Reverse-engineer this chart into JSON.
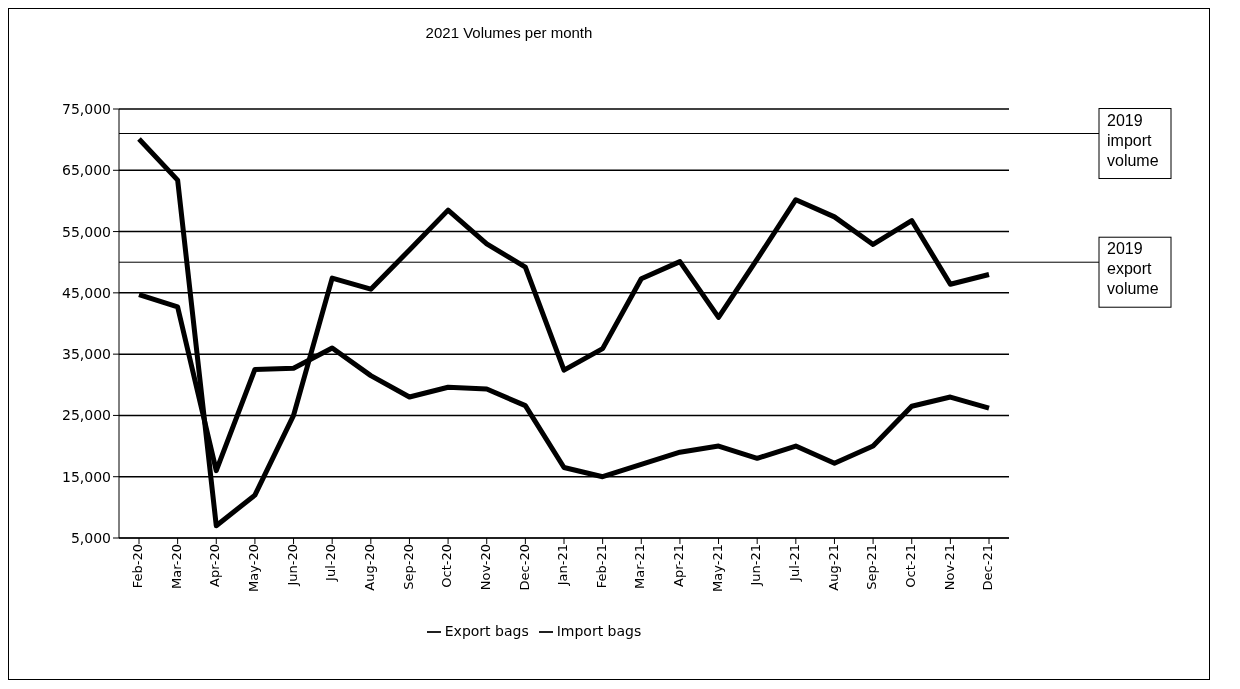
{
  "chart_data": {
    "type": "line",
    "title": "2021 Volumes per month",
    "categories": [
      "Feb-20",
      "Mar-20",
      "Apr-20",
      "May-20",
      "Jun-20",
      "Jul-20",
      "Aug-20",
      "Sep-20",
      "Oct-20",
      "Nov-20",
      "Dec-20",
      "Jan-21",
      "Feb-21",
      "Mar-21",
      "Apr-21",
      "May-21",
      "Jun-21",
      "Jul-21",
      "Aug-21",
      "Sep-21",
      "Oct-21",
      "Nov-21",
      "Dec-21"
    ],
    "series": [
      {
        "name": "Export bags",
        "color": "#000000",
        "values": [
          44700,
          42700,
          16000,
          32500,
          32700,
          36000,
          31500,
          28000,
          29600,
          29300,
          26600,
          16500,
          15000,
          17000,
          19000,
          20000,
          18000,
          20000,
          17200,
          20000,
          26500,
          28000,
          26200
        ]
      },
      {
        "name": "Import bags",
        "color": "#000000",
        "values": [
          70100,
          63400,
          7000,
          12000,
          25000,
          47400,
          45600,
          52000,
          58500,
          53000,
          49200,
          32400,
          35900,
          47300,
          50100,
          41000,
          50500,
          60200,
          57400,
          52900,
          56800,
          46400,
          48000
        ]
      }
    ],
    "ylim": [
      5000,
      75000
    ],
    "yticks": [
      {
        "value": 5000,
        "label": "5,000"
      },
      {
        "value": 15000,
        "label": "15,000"
      },
      {
        "value": 25000,
        "label": "25,000"
      },
      {
        "value": 35000,
        "label": "35,000"
      },
      {
        "value": 45000,
        "label": "45,000"
      },
      {
        "value": 55000,
        "label": "55,000"
      },
      {
        "value": 65000,
        "label": "65,000"
      },
      {
        "value": 75000,
        "label": "75,000"
      }
    ],
    "grid": "y",
    "legend": "bottom",
    "marker": "none",
    "line_style": "solid",
    "ref_lines": [
      {
        "axis": "y",
        "value": 71000,
        "label": "2019 import volume",
        "color": "#000000"
      },
      {
        "axis": "y",
        "value": 50000,
        "label": "2019 export volume",
        "color": "#000000"
      }
    ]
  }
}
